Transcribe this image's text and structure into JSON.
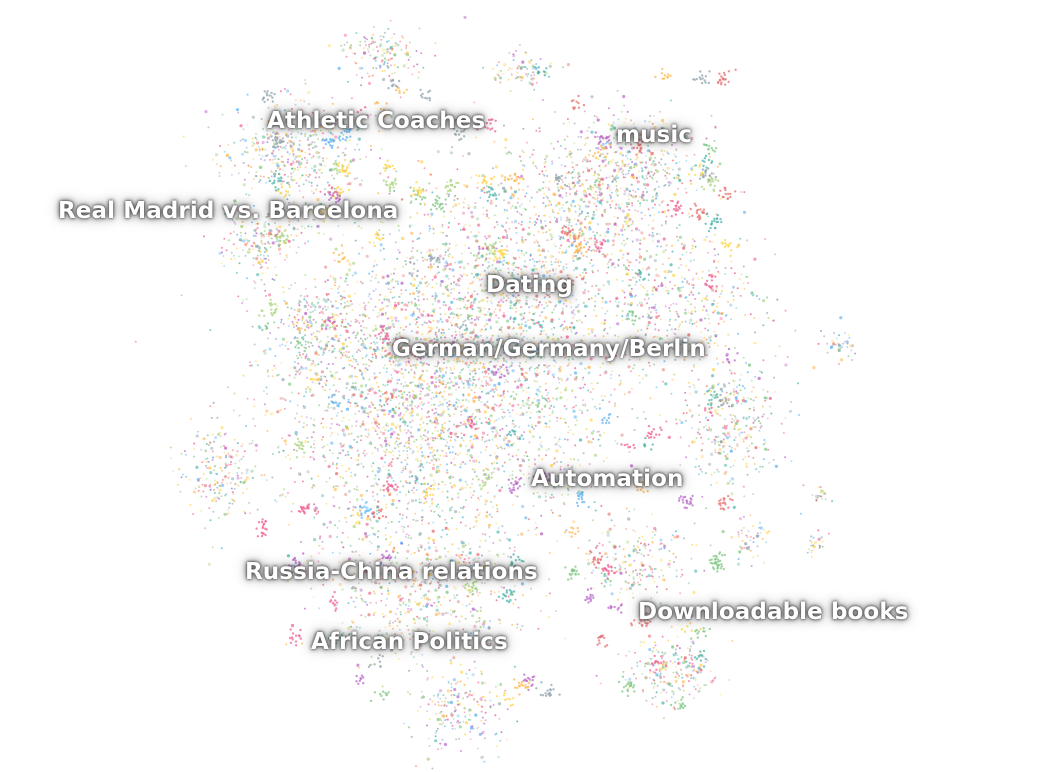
{
  "chart_data": {
    "type": "scatter",
    "title": "",
    "xlabel": "",
    "ylabel": "",
    "grid": false,
    "legend": "none",
    "series_colors": [
      "#e57373",
      "#64b5f6",
      "#81c784",
      "#ffb74d",
      "#ba68c8",
      "#4db6ac",
      "#f06292",
      "#aed581",
      "#90a4ae",
      "#ffd54f"
    ],
    "labels": [
      {
        "text": "Athletic Coaches"
      },
      {
        "text": "music"
      },
      {
        "text": "Real Madrid vs. Barcelona"
      },
      {
        "text": "Dating"
      },
      {
        "text": "German/Germany/Berlin"
      },
      {
        "text": "Automation"
      },
      {
        "text": "Russia-China relations"
      },
      {
        "text": "Downloadable books"
      },
      {
        "text": "African Politics"
      }
    ]
  }
}
